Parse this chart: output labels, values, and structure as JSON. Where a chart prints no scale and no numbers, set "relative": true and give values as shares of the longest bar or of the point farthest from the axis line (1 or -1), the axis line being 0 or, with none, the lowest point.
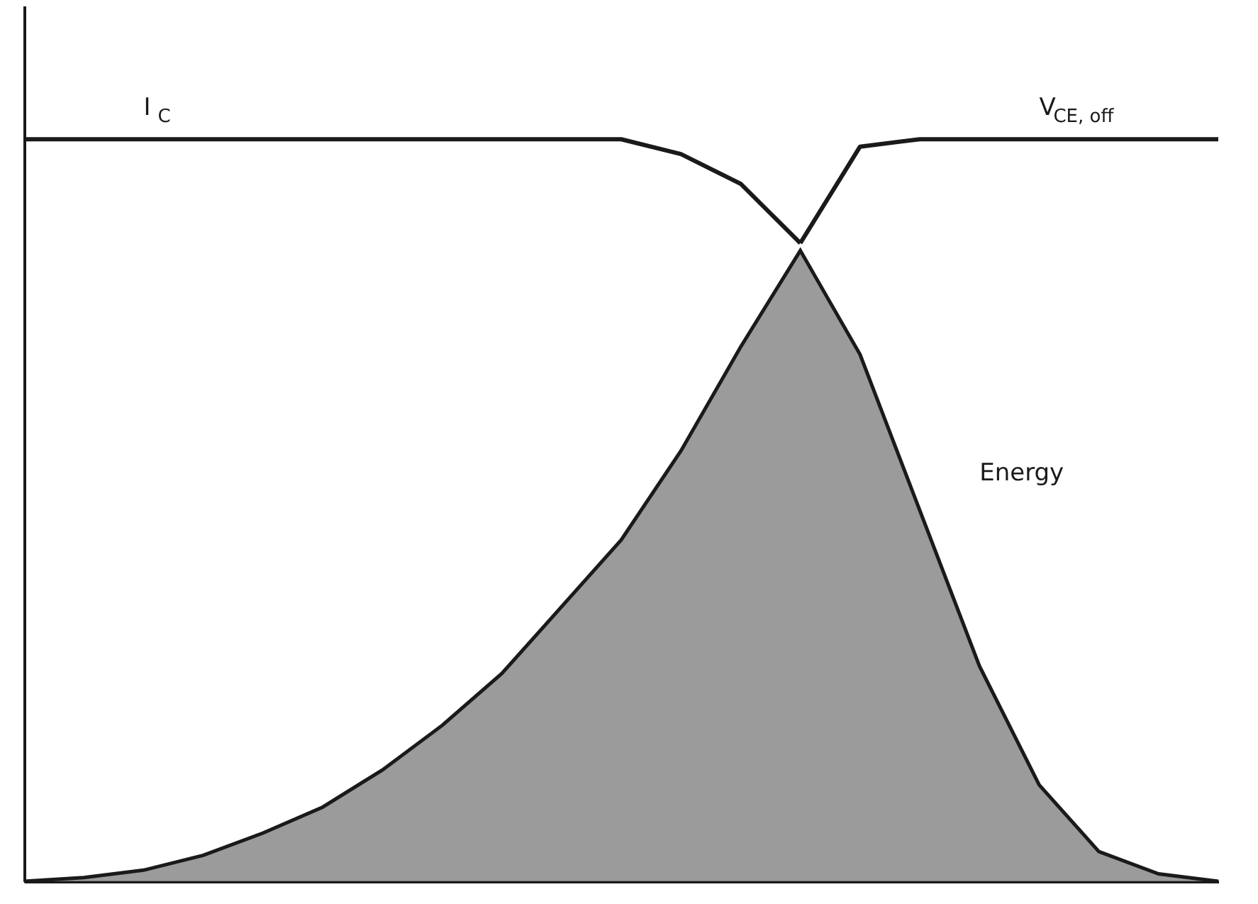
{
  "chart_data": {
    "type": "line",
    "relative": true,
    "grid": false,
    "categories": [
      null,
      null,
      null,
      null,
      null,
      null,
      null,
      null,
      null,
      null,
      null,
      null,
      null,
      null,
      null,
      null,
      null,
      null,
      null,
      null,
      null
    ],
    "series": [
      {
        "name": "I$_{C}$",
        "color": "#1a1a1a",
        "values": [
          1,
          1,
          1,
          1,
          1,
          1,
          1,
          1,
          1,
          1,
          1,
          0.98,
          0.94,
          0.86,
          null,
          null,
          null,
          null,
          null,
          null,
          null
        ]
      },
      {
        "name": "V$_{CE, off}$",
        "color": "#1a1a1a",
        "values": [
          null,
          null,
          null,
          null,
          null,
          null,
          null,
          null,
          null,
          null,
          null,
          null,
          null,
          0.86,
          0.99,
          1,
          1,
          1,
          1,
          1,
          1
        ]
      },
      {
        "name": "Energy",
        "type": "area",
        "color": "#8a8a8a",
        "values": [
          0,
          0.005,
          0.015,
          0.035,
          0.065,
          0.1,
          0.15,
          0.21,
          0.28,
          0.37,
          0.46,
          0.58,
          0.72,
          0.85,
          0.71,
          0.5,
          0.29,
          0.13,
          0.04,
          0.01,
          0
        ]
      }
    ]
  }
}
